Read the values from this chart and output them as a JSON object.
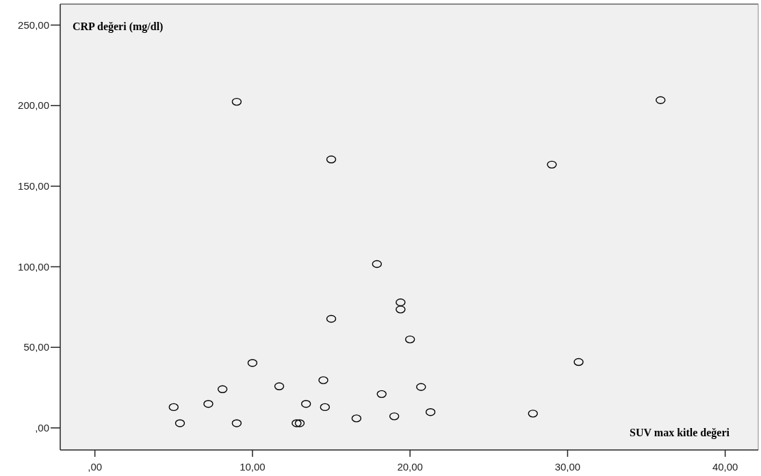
{
  "chart_data": {
    "type": "scatter",
    "xlabel": "SUV max kitle değeri",
    "ylabel": "CRP değeri (mg/dl)",
    "x": [
      5.0,
      5.4,
      7.2,
      8.1,
      9.0,
      10.0,
      11.7,
      12.8,
      13.0,
      13.4,
      14.5,
      14.6,
      16.6,
      18.2,
      20.0,
      30.7,
      20.7,
      19.0,
      21.3,
      27.8,
      9.0,
      15.0,
      17.9,
      15.0,
      35.9,
      29.0,
      19.4,
      19.4
    ],
    "series": [
      {
        "color": "#000000",
        "values": [
          12.9,
          2.9,
          14.9,
          24.0,
          2.9,
          40.3,
          25.8,
          2.9,
          2.9,
          14.9,
          29.6,
          12.9,
          5.9,
          21.0,
          54.9,
          40.9,
          25.4,
          7.2,
          9.8,
          8.9,
          202.4,
          166.6,
          101.7,
          67.7,
          203.4,
          163.4,
          77.9,
          73.5
        ]
      }
    ],
    "marker": "circle",
    "xlim": [
      -2.2,
      42.1
    ],
    "ylim": [
      -13.7,
      263
    ],
    "xticks": [
      {
        "value": 0,
        "label": ",00"
      },
      {
        "value": 10,
        "label": "10,00"
      },
      {
        "value": 20,
        "label": "20,00"
      },
      {
        "value": 30,
        "label": "30,00"
      },
      {
        "value": 40,
        "label": "40,00"
      }
    ],
    "yticks": [
      {
        "value": 0,
        "label": ",00"
      },
      {
        "value": 50,
        "label": "50,00"
      },
      {
        "value": 100,
        "label": "100,00"
      },
      {
        "value": 150,
        "label": "150,00"
      },
      {
        "value": 200,
        "label": "200,00"
      },
      {
        "value": 250,
        "label": "250,00"
      }
    ],
    "grid": false
  }
}
